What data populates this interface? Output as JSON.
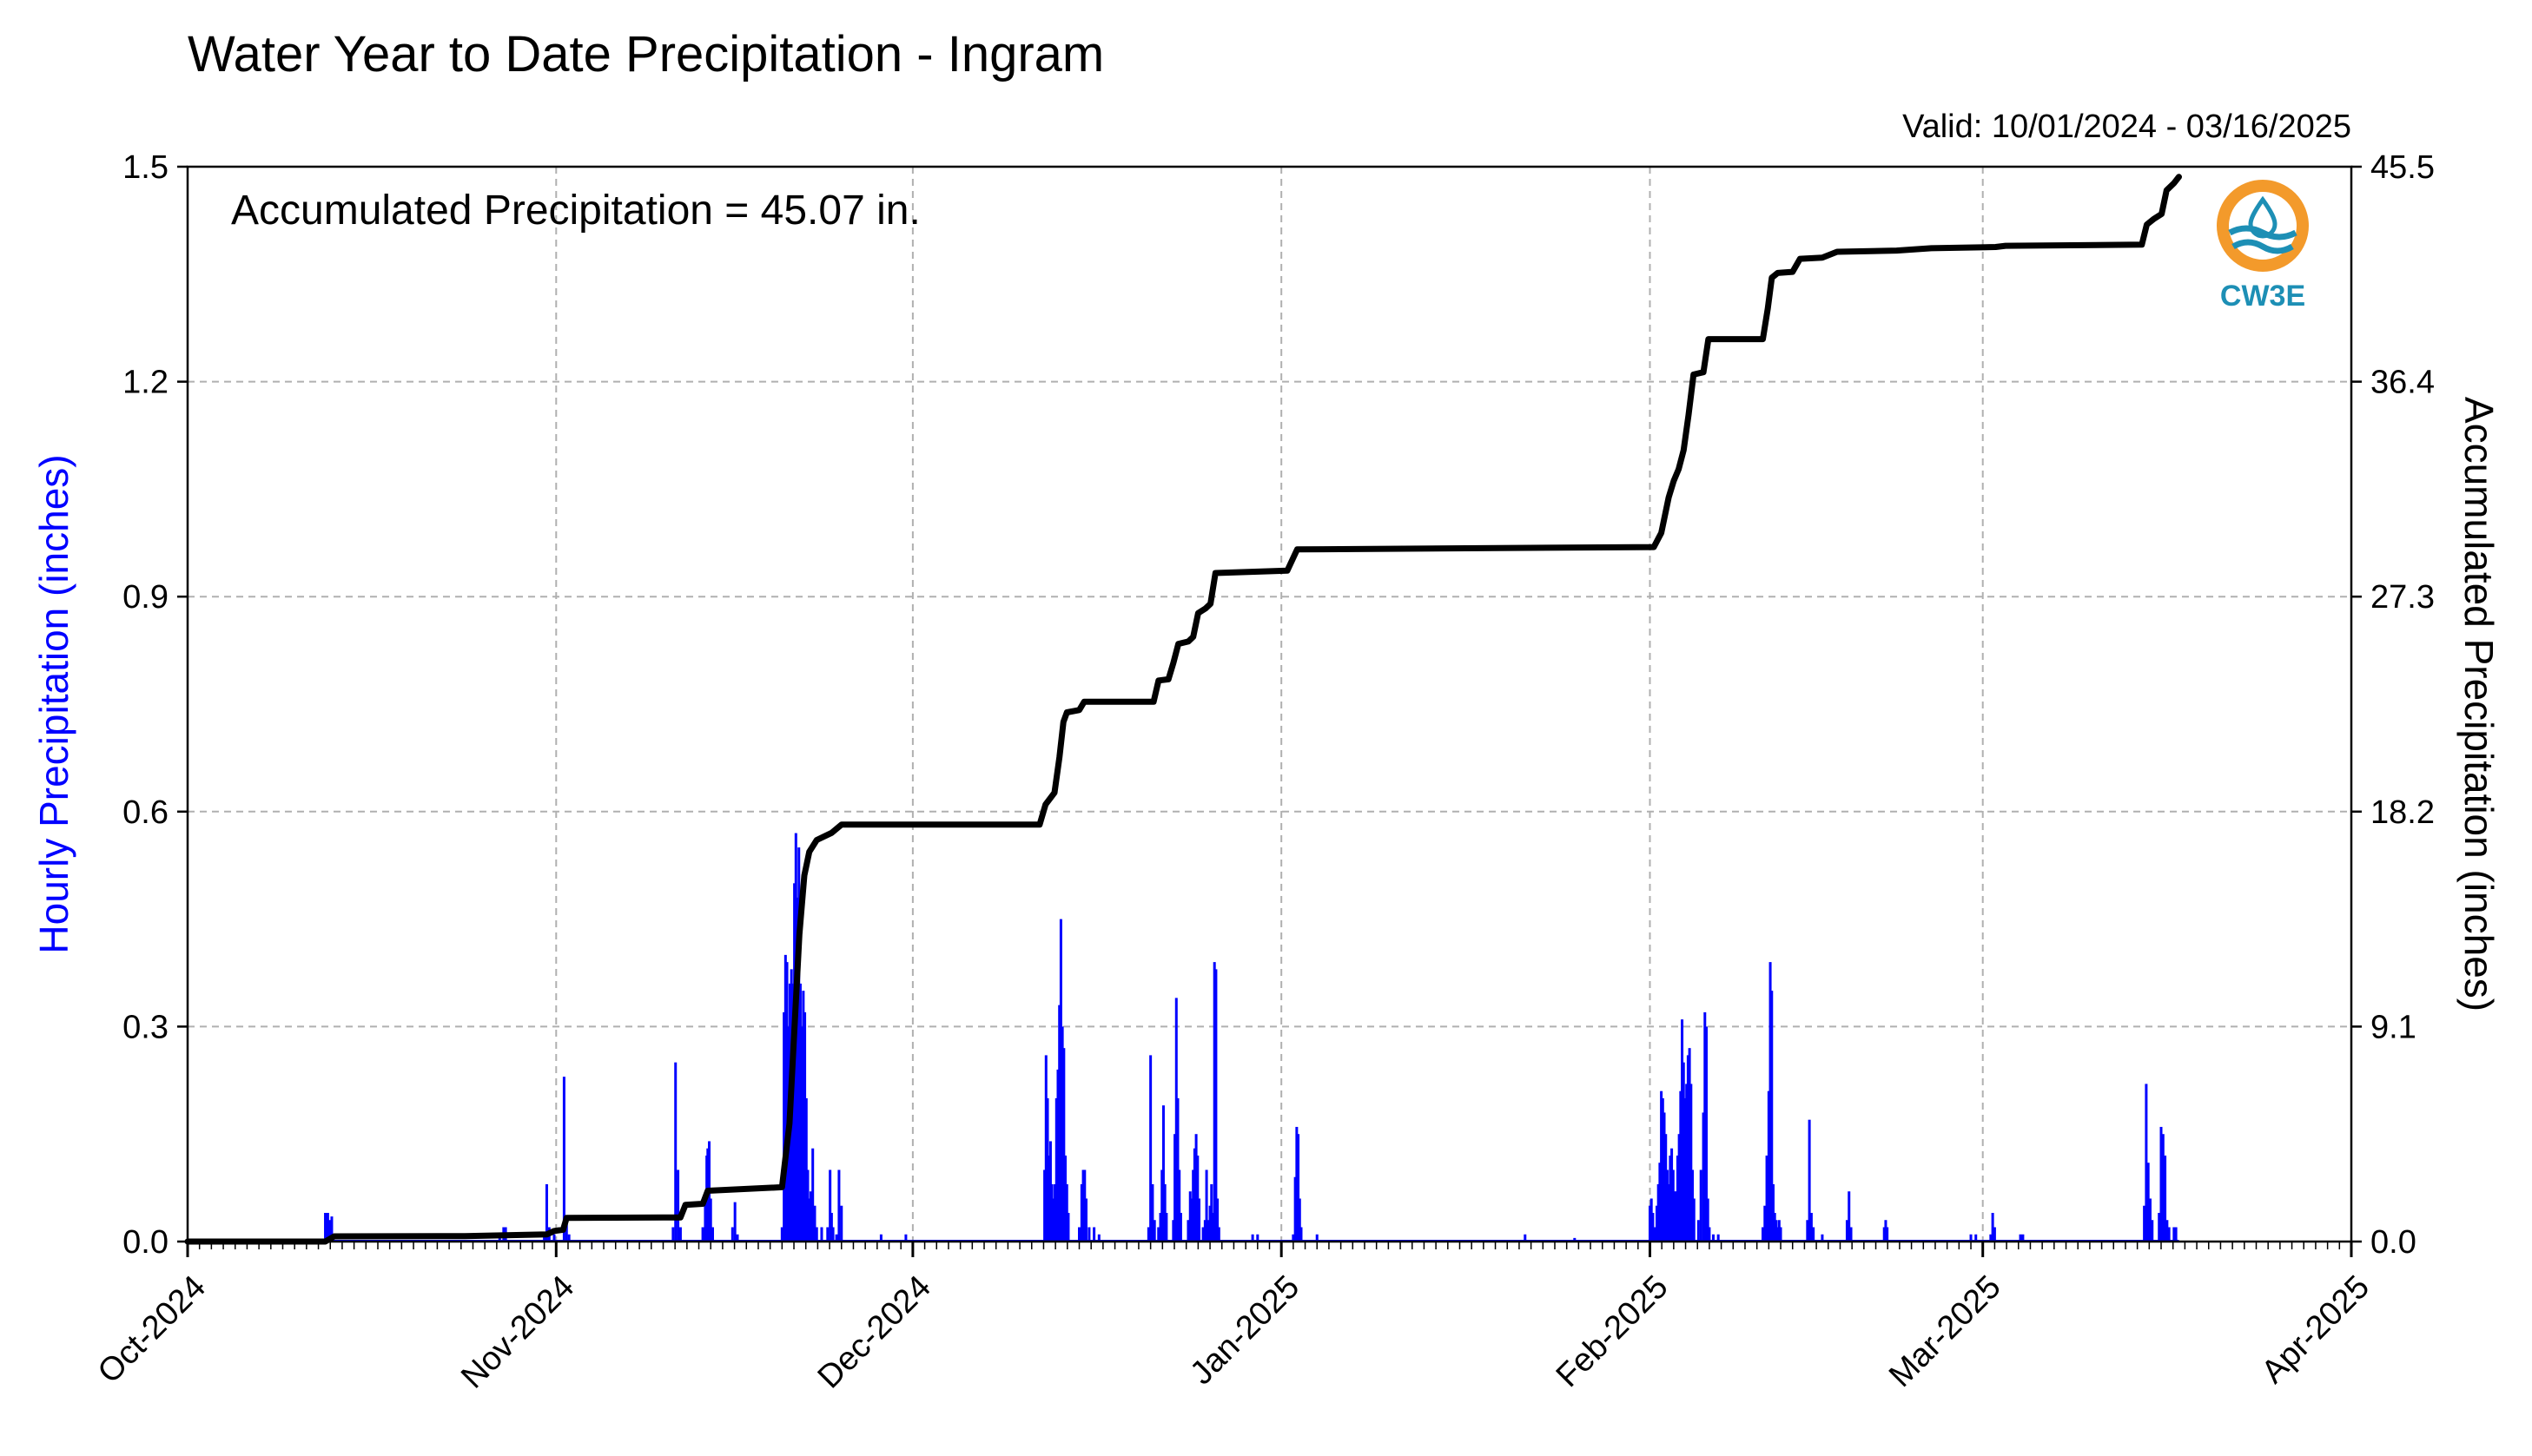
{
  "header": {
    "title": "Water Year to Date Precipitation - Ingram",
    "valid_label": "Valid: 10/01/2024 - 03/16/2025"
  },
  "annotation": "Accumulated Precipitation = 45.07 in.",
  "logo": {
    "text": "CW3E",
    "ring_color": "#f39a2b",
    "wave_color": "#1d8fb5"
  },
  "chart_data": {
    "type": "bar",
    "x_unit": "hour of water year (hours since 2024-10-01 00:00)",
    "xlabel": "",
    "ylabel": "Hourly Precipitation (inches)",
    "y2label": "Accumulated Precipitation (inches)",
    "ylim": [
      0,
      1.5
    ],
    "y2lim": [
      0,
      45.5
    ],
    "yticks": [
      "0.0",
      "0.3",
      "0.6",
      "0.9",
      "1.2",
      "1.5"
    ],
    "y2ticks": [
      "0.0",
      "9.1",
      "18.2",
      "27.3",
      "36.4",
      "45.5"
    ],
    "xticks": [
      {
        "label": "Oct-2024",
        "hour": 0
      },
      {
        "label": "Nov-2024",
        "hour": 744
      },
      {
        "label": "Dec-2024",
        "hour": 1464
      },
      {
        "label": "Jan-2025",
        "hour": 2208
      },
      {
        "label": "Feb-2025",
        "hour": 2952
      },
      {
        "label": "Mar-2025",
        "hour": 3624
      },
      {
        "label": "Apr-2025",
        "hour": 4368
      }
    ],
    "grid": true,
    "colors": {
      "hourly": "#0000ff",
      "accumulated": "#000000",
      "grid": "#b0b0b0"
    },
    "series": [
      {
        "name": "Hourly Precipitation (inches)",
        "type": "bar",
        "points": [
          [
            278,
            0.04
          ],
          [
            283,
            0.04
          ],
          [
            287,
            0.03
          ],
          [
            291,
            0.035
          ],
          [
            630,
            0.01
          ],
          [
            638,
            0.02
          ],
          [
            642,
            0.02
          ],
          [
            720,
            0.01
          ],
          [
            725,
            0.08
          ],
          [
            730,
            0.02
          ],
          [
            740,
            0.01
          ],
          [
            760,
            0.23
          ],
          [
            765,
            0.03
          ],
          [
            770,
            0.01
          ],
          [
            980,
            0.02
          ],
          [
            985,
            0.25
          ],
          [
            990,
            0.1
          ],
          [
            995,
            0.02
          ],
          [
            1040,
            0.02
          ],
          [
            1045,
            0.06
          ],
          [
            1048,
            0.12
          ],
          [
            1050,
            0.13
          ],
          [
            1053,
            0.14
          ],
          [
            1056,
            0.06
          ],
          [
            1060,
            0.02
          ],
          [
            1100,
            0.02
          ],
          [
            1105,
            0.055
          ],
          [
            1110,
            0.01
          ],
          [
            1200,
            0.02
          ],
          [
            1204,
            0.32
          ],
          [
            1207,
            0.4
          ],
          [
            1210,
            0.39
          ],
          [
            1213,
            0.3
          ],
          [
            1216,
            0.36
          ],
          [
            1219,
            0.38
          ],
          [
            1222,
            0.36
          ],
          [
            1225,
            0.5
          ],
          [
            1228,
            0.57
          ],
          [
            1231,
            0.48
          ],
          [
            1234,
            0.55
          ],
          [
            1237,
            0.36
          ],
          [
            1240,
            0.3
          ],
          [
            1243,
            0.35
          ],
          [
            1246,
            0.32
          ],
          [
            1249,
            0.2
          ],
          [
            1252,
            0.1
          ],
          [
            1255,
            0.06
          ],
          [
            1258,
            0.07
          ],
          [
            1262,
            0.13
          ],
          [
            1266,
            0.05
          ],
          [
            1270,
            0.02
          ],
          [
            1280,
            0.02
          ],
          [
            1292,
            0.02
          ],
          [
            1297,
            0.1
          ],
          [
            1300,
            0.04
          ],
          [
            1303,
            0.02
          ],
          [
            1310,
            0.01
          ],
          [
            1315,
            0.1
          ],
          [
            1320,
            0.05
          ],
          [
            1400,
            0.01
          ],
          [
            1450,
            0.01
          ],
          [
            1730,
            0.1
          ],
          [
            1733,
            0.26
          ],
          [
            1736,
            0.2
          ],
          [
            1739,
            0.12
          ],
          [
            1742,
            0.14
          ],
          [
            1745,
            0.08
          ],
          [
            1748,
            0.06
          ],
          [
            1751,
            0.08
          ],
          [
            1754,
            0.2
          ],
          [
            1757,
            0.24
          ],
          [
            1760,
            0.33
          ],
          [
            1763,
            0.45
          ],
          [
            1766,
            0.3
          ],
          [
            1769,
            0.27
          ],
          [
            1772,
            0.12
          ],
          [
            1775,
            0.08
          ],
          [
            1778,
            0.04
          ],
          [
            1800,
            0.02
          ],
          [
            1805,
            0.08
          ],
          [
            1808,
            0.1
          ],
          [
            1811,
            0.1
          ],
          [
            1814,
            0.06
          ],
          [
            1820,
            0.02
          ],
          [
            1830,
            0.02
          ],
          [
            1840,
            0.01
          ],
          [
            1940,
            0.02
          ],
          [
            1944,
            0.26
          ],
          [
            1948,
            0.08
          ],
          [
            1952,
            0.03
          ],
          [
            1960,
            0.02
          ],
          [
            1964,
            0.04
          ],
          [
            1967,
            0.1
          ],
          [
            1970,
            0.19
          ],
          [
            1973,
            0.08
          ],
          [
            1976,
            0.04
          ],
          [
            1990,
            0.03
          ],
          [
            1993,
            0.15
          ],
          [
            1996,
            0.34
          ],
          [
            1999,
            0.2
          ],
          [
            2002,
            0.1
          ],
          [
            2005,
            0.04
          ],
          [
            2020,
            0.03
          ],
          [
            2024,
            0.07
          ],
          [
            2027,
            0.06
          ],
          [
            2030,
            0.1
          ],
          [
            2033,
            0.13
          ],
          [
            2036,
            0.15
          ],
          [
            2039,
            0.12
          ],
          [
            2042,
            0.06
          ],
          [
            2050,
            0.02
          ],
          [
            2054,
            0.03
          ],
          [
            2057,
            0.1
          ],
          [
            2060,
            0.03
          ],
          [
            2064,
            0.05
          ],
          [
            2067,
            0.08
          ],
          [
            2070,
            0.04
          ],
          [
            2073,
            0.39
          ],
          [
            2076,
            0.38
          ],
          [
            2079,
            0.06
          ],
          [
            2082,
            0.02
          ],
          [
            2150,
            0.01
          ],
          [
            2160,
            0.01
          ],
          [
            2232,
            0.01
          ],
          [
            2236,
            0.09
          ],
          [
            2239,
            0.16
          ],
          [
            2242,
            0.15
          ],
          [
            2245,
            0.06
          ],
          [
            2248,
            0.02
          ],
          [
            2280,
            0.01
          ],
          [
            2700,
            0.01
          ],
          [
            2800,
            0.005
          ],
          [
            2952,
            0.05
          ],
          [
            2955,
            0.06
          ],
          [
            2958,
            0.04
          ],
          [
            2962,
            0.02
          ],
          [
            2966,
            0.05
          ],
          [
            2969,
            0.08
          ],
          [
            2972,
            0.11
          ],
          [
            2975,
            0.21
          ],
          [
            2978,
            0.2
          ],
          [
            2981,
            0.18
          ],
          [
            2984,
            0.15
          ],
          [
            2987,
            0.1
          ],
          [
            2990,
            0.08
          ],
          [
            2993,
            0.12
          ],
          [
            2996,
            0.13
          ],
          [
            2999,
            0.1
          ],
          [
            3002,
            0.07
          ],
          [
            3005,
            0.07
          ],
          [
            3008,
            0.12
          ],
          [
            3011,
            0.15
          ],
          [
            3014,
            0.21
          ],
          [
            3017,
            0.31
          ],
          [
            3020,
            0.25
          ],
          [
            3023,
            0.2
          ],
          [
            3026,
            0.22
          ],
          [
            3029,
            0.26
          ],
          [
            3032,
            0.27
          ],
          [
            3035,
            0.22
          ],
          [
            3038,
            0.1
          ],
          [
            3041,
            0.06
          ],
          [
            3050,
            0.03
          ],
          [
            3055,
            0.1
          ],
          [
            3060,
            0.18
          ],
          [
            3063,
            0.32
          ],
          [
            3066,
            0.3
          ],
          [
            3069,
            0.06
          ],
          [
            3072,
            0.02
          ],
          [
            3080,
            0.01
          ],
          [
            3090,
            0.01
          ],
          [
            3180,
            0.02
          ],
          [
            3184,
            0.05
          ],
          [
            3188,
            0.12
          ],
          [
            3192,
            0.21
          ],
          [
            3195,
            0.39
          ],
          [
            3198,
            0.35
          ],
          [
            3201,
            0.08
          ],
          [
            3204,
            0.04
          ],
          [
            3207,
            0.03
          ],
          [
            3210,
            0.02
          ],
          [
            3213,
            0.03
          ],
          [
            3216,
            0.02
          ],
          [
            3270,
            0.03
          ],
          [
            3274,
            0.17
          ],
          [
            3278,
            0.04
          ],
          [
            3282,
            0.02
          ],
          [
            3300,
            0.01
          ],
          [
            3350,
            0.03
          ],
          [
            3354,
            0.07
          ],
          [
            3358,
            0.02
          ],
          [
            3425,
            0.02
          ],
          [
            3428,
            0.03
          ],
          [
            3431,
            0.02
          ],
          [
            3600,
            0.01
          ],
          [
            3610,
            0.01
          ],
          [
            3640,
            0.01
          ],
          [
            3644,
            0.04
          ],
          [
            3648,
            0.02
          ],
          [
            3700,
            0.01
          ],
          [
            3705,
            0.01
          ],
          [
            3950,
            0.05
          ],
          [
            3954,
            0.22
          ],
          [
            3958,
            0.11
          ],
          [
            3962,
            0.06
          ],
          [
            3966,
            0.03
          ],
          [
            3980,
            0.04
          ],
          [
            3984,
            0.16
          ],
          [
            3988,
            0.15
          ],
          [
            3992,
            0.12
          ],
          [
            3996,
            0.03
          ],
          [
            4000,
            0.02
          ],
          [
            4010,
            0.02
          ],
          [
            4014,
            0.02
          ]
        ]
      },
      {
        "name": "Accumulated Precipitation (inches)",
        "type": "line",
        "points": [
          [
            0,
            0
          ],
          [
            278,
            0
          ],
          [
            296,
            0.22
          ],
          [
            560,
            0.23
          ],
          [
            725,
            0.3
          ],
          [
            740,
            0.45
          ],
          [
            758,
            0.5
          ],
          [
            765,
            1.0
          ],
          [
            995,
            1.02
          ],
          [
            1005,
            1.55
          ],
          [
            1040,
            1.6
          ],
          [
            1050,
            2.15
          ],
          [
            1200,
            2.3
          ],
          [
            1215,
            5.0
          ],
          [
            1225,
            9.0
          ],
          [
            1235,
            13.0
          ],
          [
            1245,
            15.5
          ],
          [
            1255,
            16.5
          ],
          [
            1270,
            17.0
          ],
          [
            1300,
            17.3
          ],
          [
            1320,
            17.65
          ],
          [
            1720,
            17.65
          ],
          [
            1732,
            18.5
          ],
          [
            1750,
            19.0
          ],
          [
            1760,
            20.5
          ],
          [
            1768,
            22.0
          ],
          [
            1775,
            22.4
          ],
          [
            1800,
            22.5
          ],
          [
            1810,
            22.85
          ],
          [
            1950,
            22.85
          ],
          [
            1960,
            23.75
          ],
          [
            1980,
            23.8
          ],
          [
            1990,
            24.5
          ],
          [
            2000,
            25.3
          ],
          [
            2020,
            25.4
          ],
          [
            2030,
            25.6
          ],
          [
            2040,
            26.6
          ],
          [
            2055,
            26.8
          ],
          [
            2065,
            27.0
          ],
          [
            2075,
            28.3
          ],
          [
            2220,
            28.4
          ],
          [
            2240,
            29.3
          ],
          [
            2960,
            29.4
          ],
          [
            2975,
            30.0
          ],
          [
            2990,
            31.5
          ],
          [
            3000,
            32.2
          ],
          [
            3010,
            32.7
          ],
          [
            3020,
            33.5
          ],
          [
            3030,
            35.0
          ],
          [
            3040,
            36.7
          ],
          [
            3060,
            36.8
          ],
          [
            3070,
            38.2
          ],
          [
            3180,
            38.2
          ],
          [
            3190,
            39.5
          ],
          [
            3198,
            40.8
          ],
          [
            3210,
            41.0
          ],
          [
            3240,
            41.05
          ],
          [
            3255,
            41.6
          ],
          [
            3300,
            41.65
          ],
          [
            3330,
            41.9
          ],
          [
            3450,
            41.95
          ],
          [
            3520,
            42.05
          ],
          [
            3650,
            42.1
          ],
          [
            3670,
            42.15
          ],
          [
            3945,
            42.2
          ],
          [
            3955,
            43.05
          ],
          [
            3970,
            43.3
          ],
          [
            3985,
            43.5
          ],
          [
            3995,
            44.5
          ],
          [
            4010,
            44.8
          ],
          [
            4020,
            45.07
          ]
        ]
      }
    ]
  }
}
